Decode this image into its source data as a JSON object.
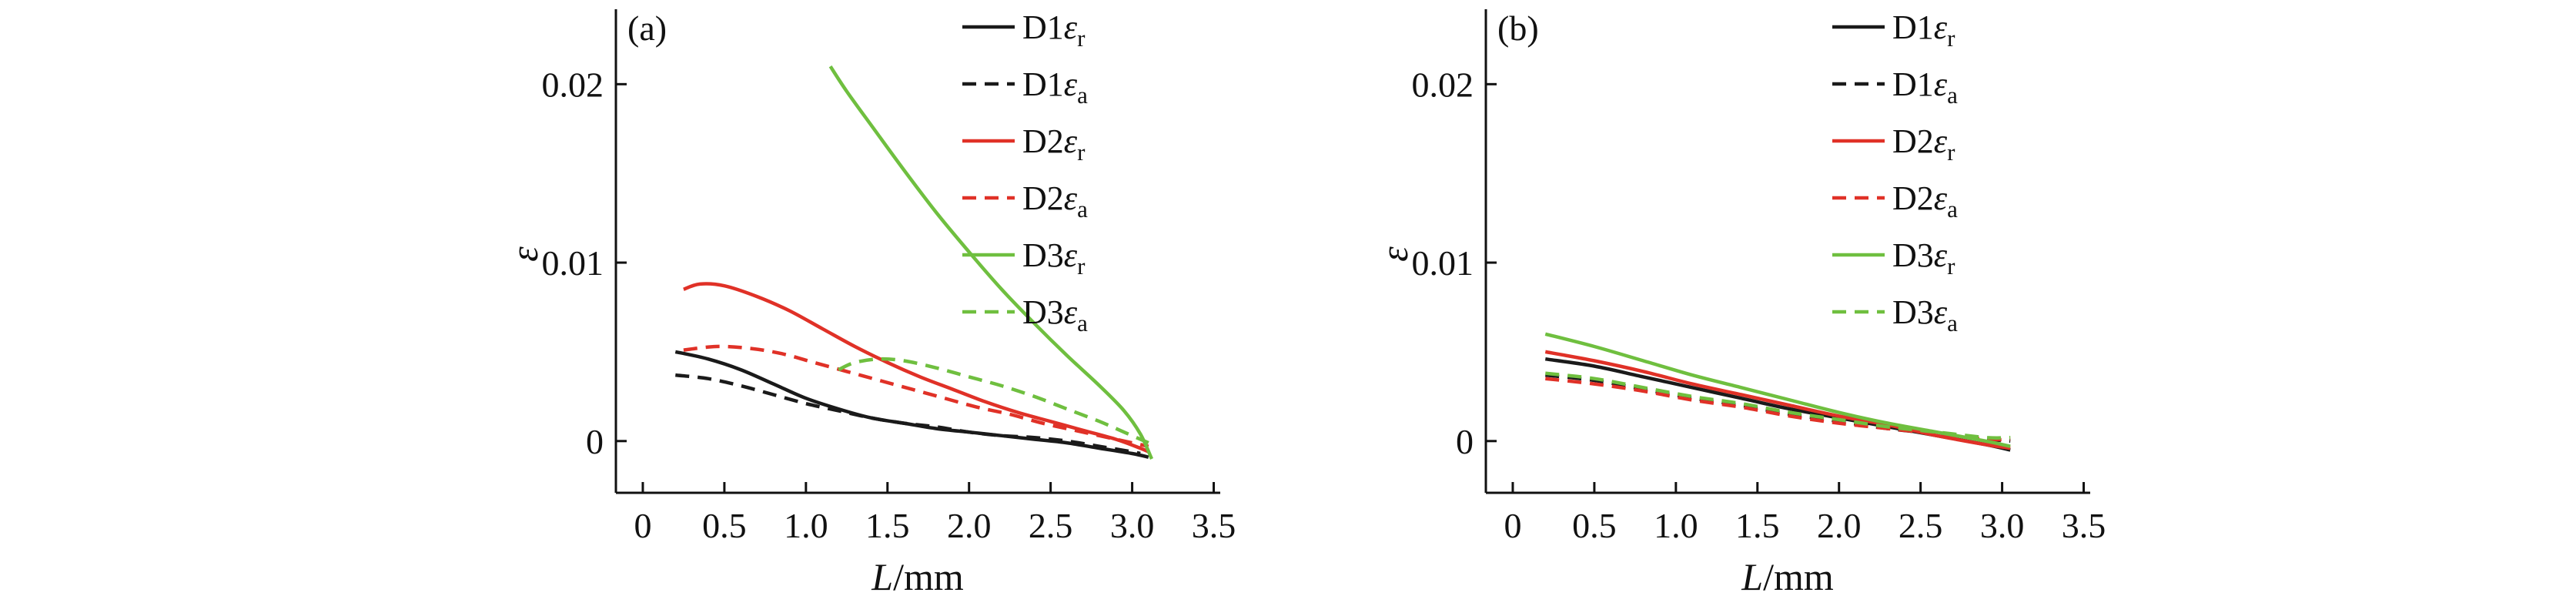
{
  "page": {
    "background": "#ffffff"
  },
  "chart_data": [
    {
      "type": "line",
      "panel_label": "(a)",
      "xlabel": {
        "italic": "L",
        "roman": "/mm"
      },
      "ylabel": "ε",
      "xlim": [
        -0.165,
        3.54
      ],
      "ylim": [
        -0.0029,
        0.0242
      ],
      "x_ticks": {
        "values": [
          0,
          0.5,
          1.0,
          1.5,
          2.0,
          2.5,
          3.0,
          3.5
        ],
        "labels": [
          "0",
          "0.5",
          "1.0",
          "1.5",
          "2.0",
          "2.5",
          "3.0",
          "3.5"
        ]
      },
      "y_ticks": {
        "values": [
          0,
          0.01,
          0.02
        ],
        "labels": [
          "0",
          "0.01",
          "0.02"
        ]
      },
      "grid": false,
      "legend_position": "top-right",
      "series": [
        {
          "name": "D1 epsilon-r",
          "label": {
            "prefix": "D1",
            "symbol": "ε",
            "subscript": "r"
          },
          "color": "#1a1a1a",
          "style": "solid",
          "points": [
            [
              0.2,
              0.005
            ],
            [
              0.4,
              0.0046
            ],
            [
              0.6,
              0.004
            ],
            [
              0.8,
              0.0032
            ],
            [
              1.0,
              0.0024
            ],
            [
              1.2,
              0.0018
            ],
            [
              1.4,
              0.0013
            ],
            [
              1.6,
              0.001
            ],
            [
              1.8,
              0.0007
            ],
            [
              2.0,
              0.0005
            ],
            [
              2.2,
              0.0003
            ],
            [
              2.4,
              0.0001
            ],
            [
              2.6,
              -0.0001
            ],
            [
              2.8,
              -0.0004
            ],
            [
              3.0,
              -0.0007
            ],
            [
              3.1,
              -0.0009
            ]
          ]
        },
        {
          "name": "D1 epsilon-a",
          "label": {
            "prefix": "D1",
            "symbol": "ε",
            "subscript": "a"
          },
          "color": "#1a1a1a",
          "style": "dashed",
          "points": [
            [
              0.2,
              0.0037
            ],
            [
              0.4,
              0.0035
            ],
            [
              0.6,
              0.0031
            ],
            [
              0.8,
              0.0026
            ],
            [
              1.0,
              0.0021
            ],
            [
              1.2,
              0.0017
            ],
            [
              1.4,
              0.0013
            ],
            [
              1.6,
              0.001
            ],
            [
              1.8,
              0.0008
            ],
            [
              2.0,
              0.0005
            ],
            [
              2.2,
              0.0003
            ],
            [
              2.4,
              0.0002
            ],
            [
              2.6,
              0.0
            ],
            [
              2.8,
              -0.0003
            ],
            [
              3.0,
              -0.0006
            ],
            [
              3.05,
              -0.0007
            ]
          ]
        },
        {
          "name": "D2 epsilon-r",
          "label": {
            "prefix": "D2",
            "symbol": "ε",
            "subscript": "r"
          },
          "color": "#e03127",
          "style": "solid",
          "points": [
            [
              0.25,
              0.0085
            ],
            [
              0.35,
              0.0088
            ],
            [
              0.5,
              0.0087
            ],
            [
              0.7,
              0.0081
            ],
            [
              0.9,
              0.0073
            ],
            [
              1.1,
              0.0063
            ],
            [
              1.3,
              0.0053
            ],
            [
              1.5,
              0.0044
            ],
            [
              1.7,
              0.0036
            ],
            [
              1.9,
              0.0029
            ],
            [
              2.1,
              0.0022
            ],
            [
              2.3,
              0.0016
            ],
            [
              2.5,
              0.0011
            ],
            [
              2.7,
              0.0006
            ],
            [
              2.9,
              0.0001
            ],
            [
              3.05,
              -0.0004
            ],
            [
              3.1,
              -0.0006
            ]
          ]
        },
        {
          "name": "D2 epsilon-a",
          "label": {
            "prefix": "D2",
            "symbol": "ε",
            "subscript": "a"
          },
          "color": "#e03127",
          "style": "dashed",
          "points": [
            [
              0.25,
              0.0051
            ],
            [
              0.45,
              0.0053
            ],
            [
              0.65,
              0.0052
            ],
            [
              0.85,
              0.0049
            ],
            [
              1.05,
              0.0044
            ],
            [
              1.25,
              0.0039
            ],
            [
              1.45,
              0.0034
            ],
            [
              1.65,
              0.0029
            ],
            [
              1.85,
              0.0024
            ],
            [
              2.05,
              0.0019
            ],
            [
              2.25,
              0.0015
            ],
            [
              2.45,
              0.001
            ],
            [
              2.65,
              0.0006
            ],
            [
              2.85,
              0.0002
            ],
            [
              3.0,
              -0.0001
            ],
            [
              3.1,
              -0.0003
            ]
          ]
        },
        {
          "name": "D3 epsilon-r",
          "label": {
            "prefix": "D3",
            "symbol": "ε",
            "subscript": "r"
          },
          "color": "#6fbf3f",
          "style": "solid",
          "points": [
            [
              1.15,
              0.021
            ],
            [
              1.25,
              0.0196
            ],
            [
              1.4,
              0.0177
            ],
            [
              1.6,
              0.0152
            ],
            [
              1.8,
              0.0128
            ],
            [
              2.0,
              0.0106
            ],
            [
              2.2,
              0.0085
            ],
            [
              2.4,
              0.0066
            ],
            [
              2.6,
              0.0048
            ],
            [
              2.8,
              0.0031
            ],
            [
              2.95,
              0.0017
            ],
            [
              3.05,
              0.0004
            ],
            [
              3.12,
              -0.001
            ]
          ]
        },
        {
          "name": "D3 epsilon-a",
          "label": {
            "prefix": "D3",
            "symbol": "ε",
            "subscript": "a"
          },
          "color": "#6fbf3f",
          "style": "dashed",
          "points": [
            [
              1.2,
              0.004
            ],
            [
              1.3,
              0.0044
            ],
            [
              1.45,
              0.0046
            ],
            [
              1.6,
              0.0045
            ],
            [
              1.8,
              0.0041
            ],
            [
              2.0,
              0.0036
            ],
            [
              2.2,
              0.0031
            ],
            [
              2.4,
              0.0025
            ],
            [
              2.6,
              0.0018
            ],
            [
              2.8,
              0.0011
            ],
            [
              2.95,
              0.0005
            ],
            [
              3.1,
              -0.0001
            ]
          ]
        }
      ]
    },
    {
      "type": "line",
      "panel_label": "(b)",
      "xlabel": {
        "italic": "L",
        "roman": "/mm"
      },
      "ylabel": "ε",
      "xlim": [
        -0.165,
        3.54
      ],
      "ylim": [
        -0.0029,
        0.0242
      ],
      "x_ticks": {
        "values": [
          0,
          0.5,
          1.0,
          1.5,
          2.0,
          2.5,
          3.0,
          3.5
        ],
        "labels": [
          "0",
          "0.5",
          "1.0",
          "1.5",
          "2.0",
          "2.5",
          "3.0",
          "3.5"
        ]
      },
      "y_ticks": {
        "values": [
          0,
          0.01,
          0.02
        ],
        "labels": [
          "0",
          "0.01",
          "0.02"
        ]
      },
      "grid": false,
      "legend_position": "top-right",
      "series": [
        {
          "name": "D1 epsilon-r",
          "label": {
            "prefix": "D1",
            "symbol": "ε",
            "subscript": "r"
          },
          "color": "#1a1a1a",
          "style": "solid",
          "points": [
            [
              0.2,
              0.0046
            ],
            [
              0.5,
              0.0042
            ],
            [
              0.8,
              0.0036
            ],
            [
              1.1,
              0.003
            ],
            [
              1.4,
              0.0024
            ],
            [
              1.7,
              0.0018
            ],
            [
              2.0,
              0.0013
            ],
            [
              2.3,
              0.0008
            ],
            [
              2.6,
              0.0003
            ],
            [
              2.9,
              -0.0002
            ],
            [
              3.05,
              -0.0005
            ]
          ]
        },
        {
          "name": "D1 epsilon-a",
          "label": {
            "prefix": "D1",
            "symbol": "ε",
            "subscript": "a"
          },
          "color": "#1a1a1a",
          "style": "dashed",
          "points": [
            [
              0.2,
              0.0037
            ],
            [
              0.5,
              0.0034
            ],
            [
              0.8,
              0.0029
            ],
            [
              1.1,
              0.0024
            ],
            [
              1.4,
              0.002
            ],
            [
              1.7,
              0.0015
            ],
            [
              2.0,
              0.0011
            ],
            [
              2.3,
              0.0007
            ],
            [
              2.6,
              0.0004
            ],
            [
              2.9,
              0.0001
            ],
            [
              3.05,
              0.0
            ]
          ]
        },
        {
          "name": "D2 epsilon-r",
          "label": {
            "prefix": "D2",
            "symbol": "ε",
            "subscript": "r"
          },
          "color": "#e03127",
          "style": "solid",
          "points": [
            [
              0.2,
              0.005
            ],
            [
              0.5,
              0.0045
            ],
            [
              0.8,
              0.0039
            ],
            [
              1.1,
              0.0032
            ],
            [
              1.4,
              0.0026
            ],
            [
              1.7,
              0.002
            ],
            [
              2.0,
              0.0014
            ],
            [
              2.3,
              0.0009
            ],
            [
              2.6,
              0.0003
            ],
            [
              2.9,
              -0.0002
            ],
            [
              3.05,
              -0.0004
            ]
          ]
        },
        {
          "name": "D2 epsilon-a",
          "label": {
            "prefix": "D2",
            "symbol": "ε",
            "subscript": "a"
          },
          "color": "#e03127",
          "style": "dashed",
          "points": [
            [
              0.2,
              0.0035
            ],
            [
              0.5,
              0.0032
            ],
            [
              0.8,
              0.0028
            ],
            [
              1.1,
              0.0023
            ],
            [
              1.4,
              0.0019
            ],
            [
              1.7,
              0.0014
            ],
            [
              2.0,
              0.001
            ],
            [
              2.3,
              0.0007
            ],
            [
              2.6,
              0.0004
            ],
            [
              2.9,
              0.0001
            ],
            [
              3.05,
              0.0001
            ]
          ]
        },
        {
          "name": "D3 epsilon-r",
          "label": {
            "prefix": "D3",
            "symbol": "ε",
            "subscript": "r"
          },
          "color": "#6fbf3f",
          "style": "solid",
          "points": [
            [
              0.2,
              0.006
            ],
            [
              0.5,
              0.0053
            ],
            [
              0.8,
              0.0045
            ],
            [
              1.1,
              0.0037
            ],
            [
              1.4,
              0.003
            ],
            [
              1.7,
              0.0023
            ],
            [
              2.0,
              0.0016
            ],
            [
              2.3,
              0.001
            ],
            [
              2.6,
              0.0005
            ],
            [
              2.9,
              0.0
            ],
            [
              3.05,
              -0.0003
            ]
          ]
        },
        {
          "name": "D3 epsilon-a",
          "label": {
            "prefix": "D3",
            "symbol": "ε",
            "subscript": "a"
          },
          "color": "#6fbf3f",
          "style": "dashed",
          "points": [
            [
              0.2,
              0.0038
            ],
            [
              0.5,
              0.0035
            ],
            [
              0.8,
              0.003
            ],
            [
              1.1,
              0.0025
            ],
            [
              1.4,
              0.0021
            ],
            [
              1.7,
              0.0016
            ],
            [
              2.0,
              0.0012
            ],
            [
              2.3,
              0.0008
            ],
            [
              2.6,
              0.0005
            ],
            [
              2.9,
              0.0002
            ],
            [
              3.05,
              0.0002
            ]
          ]
        }
      ]
    }
  ]
}
